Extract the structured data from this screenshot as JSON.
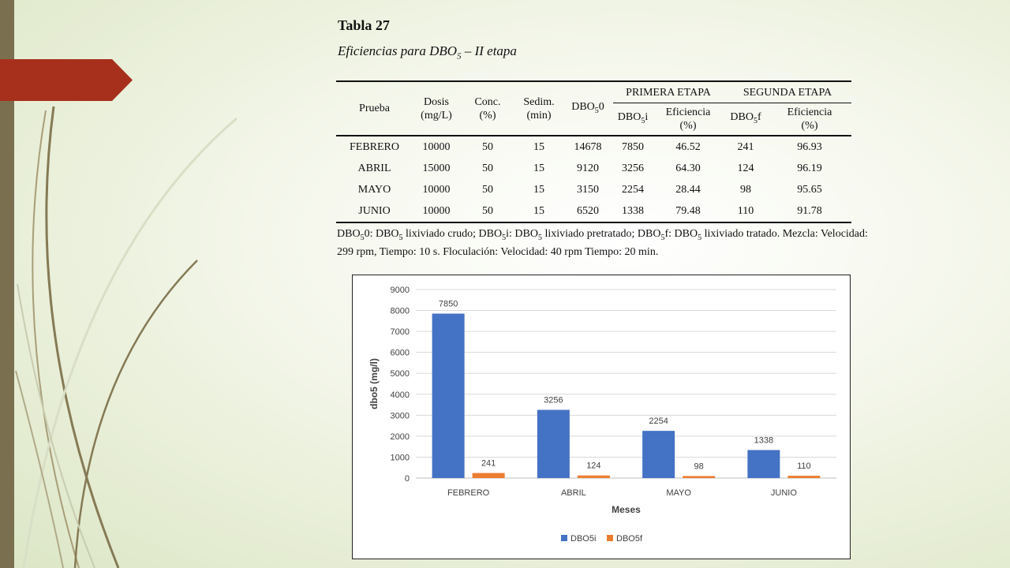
{
  "table": {
    "title": "Tabla 27",
    "subtitle_prefix": "Eficiencias para DBO",
    "subtitle_sub": "5",
    "subtitle_suffix": " – II etapa",
    "headers": {
      "prueba": "Prueba",
      "dosis": "Dosis\n(mg/L)",
      "conc": "Conc.\n(%)",
      "sedim": "Sedim.\n(min)",
      "dbo50_prefix": "DBO",
      "dbo50_sub": "5",
      "dbo50_suffix": "0",
      "primera_etapa": "PRIMERA ETAPA",
      "segunda_etapa": "SEGUNDA ETAPA",
      "dbo5i_prefix": "DBO",
      "dbo5i_sub": "5",
      "dbo5i_suffix": "i",
      "eficiencia1": "Eficiencia\n(%)",
      "dbo5f_prefix": "DBO",
      "dbo5f_sub": "5",
      "dbo5f_suffix": "f",
      "eficiencia2": "Eficiencia\n(%)"
    },
    "rows": [
      {
        "prueba": "FEBRERO",
        "dosis": "10000",
        "conc": "50",
        "sedim": "15",
        "dbo50": "14678",
        "dbo5i": "7850",
        "ef1": "46.52",
        "dbo5f": "241",
        "ef2": "96.93"
      },
      {
        "prueba": "ABRIL",
        "dosis": "15000",
        "conc": "50",
        "sedim": "15",
        "dbo50": "9120",
        "dbo5i": "3256",
        "ef1": "64.30",
        "dbo5f": "124",
        "ef2": "96.19"
      },
      {
        "prueba": "MAYO",
        "dosis": "10000",
        "conc": "50",
        "sedim": "15",
        "dbo50": "3150",
        "dbo5i": "2254",
        "ef1": "28.44",
        "dbo5f": "98",
        "ef2": "95.65"
      },
      {
        "prueba": "JUNIO",
        "dosis": "10000",
        "conc": "50",
        "sedim": "15",
        "dbo50": "6520",
        "dbo5i": "1338",
        "ef1": "79.48",
        "dbo5f": "110",
        "ef2": "91.78"
      }
    ],
    "footnote": {
      "p1": "DBO",
      "s1": "5",
      "p2": "0: DBO",
      "s2": "5",
      "p3": " lixiviado crudo; DBO",
      "s3": "5",
      "p4": "i: DBO",
      "s4": "5",
      "p5": " lixiviado pretratado; DBO",
      "s5": "5",
      "p6": "f: DBO",
      "s6": "5",
      "p7": " lixiviado tratado. Mezcla: Velocidad: 299 rpm, Tiempo: 10 s. Floculación: Velocidad: 40 rpm Tiempo: 20 min."
    }
  },
  "colors": {
    "series_dbo5i": "#4472c4",
    "series_dbo5f": "#ed7d31",
    "red_tab": "#a6301c",
    "left_bar": "#7a7050"
  },
  "chart_data": {
    "type": "bar",
    "categories": [
      "FEBRERO",
      "ABRIL",
      "MAYO",
      "JUNIO"
    ],
    "series": [
      {
        "name": "DBO5i",
        "values": [
          7850,
          3256,
          2254,
          1338
        ],
        "color": "#4472c4"
      },
      {
        "name": "DBO5f",
        "values": [
          241,
          124,
          98,
          110
        ],
        "color": "#ed7d31"
      }
    ],
    "title": "",
    "xlabel": "Meses",
    "ylabel": "dbo5 (mg/l)",
    "ylim": [
      0,
      9000
    ],
    "yticks": [
      0,
      1000,
      2000,
      3000,
      4000,
      5000,
      6000,
      7000,
      8000,
      9000
    ],
    "grid": true,
    "data_labels": true,
    "legend_position": "bottom"
  }
}
